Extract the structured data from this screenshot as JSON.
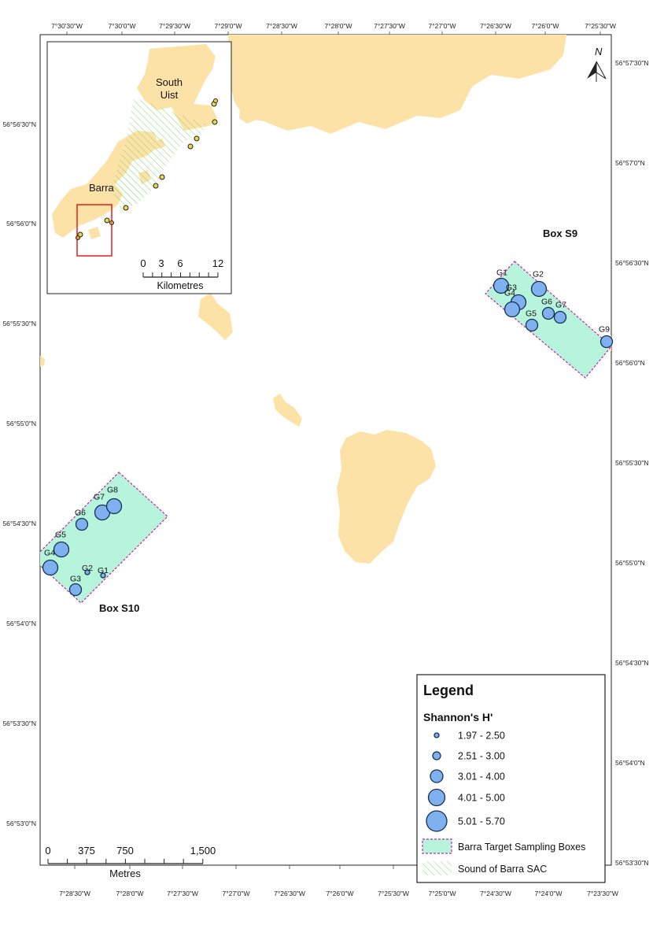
{
  "top_ticks": [
    "7°30'30\"W",
    "7°30'0\"W",
    "7°29'30\"W",
    "7°29'0\"W",
    "7°28'30\"W",
    "7°28'0\"W",
    "7°27'30\"W",
    "7°27'0\"W",
    "7°26'30\"W",
    "7°26'0\"W",
    "7°25'30\"W"
  ],
  "bottom_ticks": [
    "7°28'30\"W",
    "7°28'0\"W",
    "7°27'30\"W",
    "7°27'0\"W",
    "7°26'30\"W",
    "7°26'0\"W",
    "7°25'30\"W",
    "7°25'0\"W",
    "7°24'30\"W",
    "7°24'0\"W",
    "7°23'30\"W"
  ],
  "left_ticks": [
    "56°56'30\"N",
    "56°56'0\"N",
    "56°55'30\"N",
    "56°55'0\"N",
    "56°54'30\"N",
    "56°54'0\"N",
    "56°53'30\"N",
    "56°53'0\"N"
  ],
  "right_ticks": [
    "56°57'30\"N",
    "56°57'0\"N",
    "56°56'30\"N",
    "56°56'0\"N",
    "56°55'30\"N",
    "56°55'0\"N",
    "56°54'30\"N",
    "56°54'0\"N",
    "56°53'30\"N"
  ],
  "north_label": "N",
  "box_labels": {
    "s9": "Box S9",
    "s10": "Box S10"
  },
  "stations_s9": [
    {
      "label": "G1",
      "h_class": 4
    },
    {
      "label": "G2",
      "h_class": 4
    },
    {
      "label": "G3",
      "h_class": 4
    },
    {
      "label": "G4",
      "h_class": 4
    },
    {
      "label": "G5",
      "h_class": 3
    },
    {
      "label": "G6",
      "h_class": 3
    },
    {
      "label": "G7",
      "h_class": 3
    },
    {
      "label": "G9",
      "h_class": 3
    }
  ],
  "stations_s10": [
    {
      "label": "G1",
      "h_class": 1
    },
    {
      "label": "G2",
      "h_class": 1
    },
    {
      "label": "G3",
      "h_class": 3
    },
    {
      "label": "G4",
      "h_class": 4
    },
    {
      "label": "G5",
      "h_class": 4
    },
    {
      "label": "G6",
      "h_class": 3
    },
    {
      "label": "G7",
      "h_class": 4
    },
    {
      "label": "G8",
      "h_class": 4
    }
  ],
  "inset": {
    "place_south_uist": [
      "South",
      "Uist"
    ],
    "place_barra": "Barra",
    "scale_ticks": [
      "0",
      "3",
      "6",
      "12"
    ],
    "scale_unit": "Kilometres"
  },
  "scale_bar": {
    "ticks": [
      "0",
      "375",
      "750",
      "1,500"
    ],
    "unit": "Metres"
  },
  "legend": {
    "title": "Legend",
    "subtitle": "Shannon's H'",
    "classes": [
      "1.97 - 2.50",
      "2.51 - 3.00",
      "3.01 - 4.00",
      "4.01 - 5.00",
      "5.01 - 5.70"
    ],
    "box_label": "Barra Target Sampling Boxes",
    "sac_label": "Sound of Barra SAC"
  },
  "colors": {
    "land": "#fde2a8",
    "sampling_box_fill": "#b6f5dc",
    "sampling_box_border": "#cc22aa",
    "sac_hatch": "#7cd66b",
    "station_fill": "#7fb1f0",
    "station_stroke": "#16314f",
    "inset_frame": "#e02020"
  }
}
